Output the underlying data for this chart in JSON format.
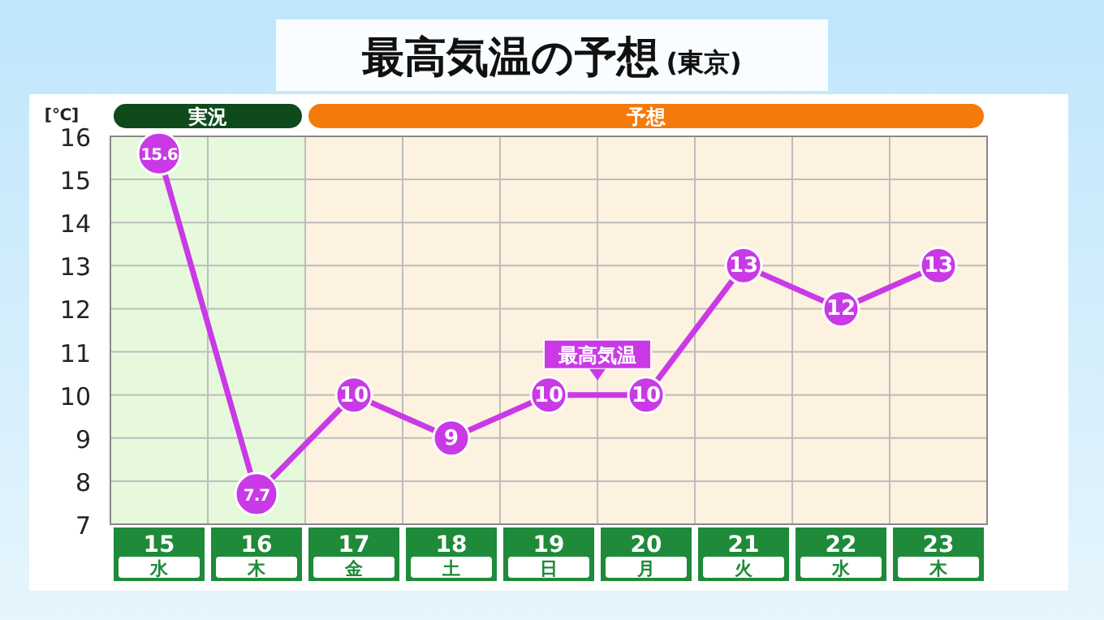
{
  "chart_data": {
    "type": "line",
    "title": "最高気温の予想",
    "subtitle": "(東京)",
    "ylabel": "[℃]",
    "categories": [
      "15 水",
      "16 木",
      "17 金",
      "18 土",
      "19 日",
      "20 月",
      "21 火",
      "22 水",
      "23 木"
    ],
    "series": [
      {
        "color": "#c93ae6",
        "values": [
          15.6,
          7.7,
          10,
          9,
          10,
          10,
          13,
          12,
          13
        ]
      }
    ],
    "ylim": [
      7,
      16
    ],
    "yticks": [
      7,
      8,
      9,
      10,
      11,
      12,
      13,
      14,
      15,
      16
    ],
    "grid": true,
    "marker": "circle",
    "data_labels": true,
    "bands": [
      {
        "axis": "x",
        "from": "15 水",
        "to": "16 木",
        "label": "実況",
        "color": "#e6f9dc"
      },
      {
        "axis": "x",
        "from": "17 金",
        "to": "23 木",
        "label": "予想",
        "color": "#fdf1e0"
      }
    ],
    "annotations": [
      {
        "text": "最高気温",
        "y": 10
      }
    ]
  }
}
